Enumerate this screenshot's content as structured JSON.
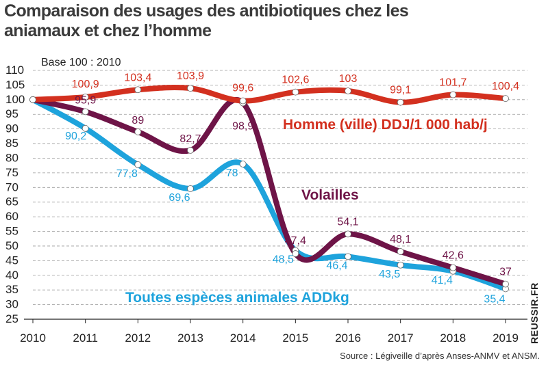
{
  "title": "Comparaison des usages des antibiotiques chez les aniamaux et chez l’homme",
  "source": "Source : Légiveille d’après Anses-ANMV et ANSM.",
  "watermark": "REUSSIR.FR",
  "chart_data": {
    "type": "line",
    "ylabel": "Base 100 : 2010",
    "x": [
      "2010",
      "2011",
      "2012",
      "2013",
      "2014",
      "2015",
      "2016",
      "2017",
      "2018",
      "2019"
    ],
    "yticks": [
      25,
      30,
      35,
      40,
      45,
      50,
      55,
      60,
      65,
      70,
      75,
      80,
      85,
      90,
      95,
      100,
      105,
      110
    ],
    "ylim": [
      25,
      110
    ],
    "grid": true,
    "series": [
      {
        "name": "Homme (ville) DDJ/1 000 hab/j",
        "color": "#d3301f",
        "values": [
          100,
          100.9,
          103.4,
          103.9,
          99.6,
          102.6,
          103,
          99.1,
          101.7,
          100.4
        ],
        "labels": [
          "",
          "100,9",
          "103,4",
          "103,9",
          "99,6",
          "102,6",
          "103",
          "99,1",
          "101,7",
          "100,4"
        ]
      },
      {
        "name": "Volailles",
        "color": "#6e1447",
        "values": [
          100,
          95.9,
          89,
          82.7,
          98.9,
          47.4,
          54.1,
          48.1,
          42.6,
          37
        ],
        "labels": [
          "",
          "95,9",
          "89",
          "82,7",
          "98,9",
          "47,4",
          "54,1",
          "48,1",
          "42,6",
          "37"
        ]
      },
      {
        "name": "Toutes espèces animales ADDkg",
        "color": "#1ea3dc",
        "values": [
          100,
          90.2,
          77.8,
          69.6,
          78,
          48.5,
          46.4,
          43.5,
          41.4,
          35.4
        ],
        "labels": [
          "",
          "90,2",
          "77,8",
          "69,6",
          "78",
          "48,5",
          "46,4",
          "43,5",
          "41,4",
          "35,4"
        ]
      }
    ]
  }
}
